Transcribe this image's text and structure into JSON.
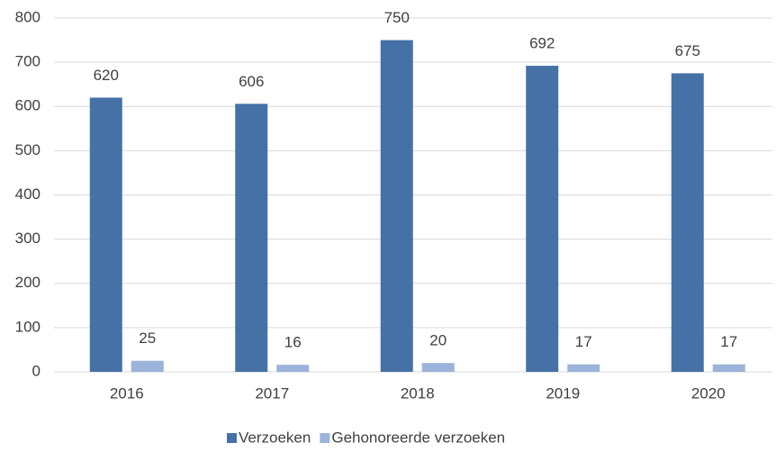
{
  "chart_data": {
    "type": "bar",
    "categories": [
      "2016",
      "2017",
      "2018",
      "2019",
      "2020"
    ],
    "series": [
      {
        "name": "Verzoeken",
        "color": "#4571a6",
        "values": [
          620,
          606,
          750,
          692,
          675
        ]
      },
      {
        "name": "Gehonoreerde verzoeken",
        "color": "#9bb3da",
        "values": [
          25,
          16,
          20,
          17,
          17
        ]
      }
    ],
    "ylim": [
      0,
      800
    ],
    "yticks": [
      0,
      100,
      200,
      300,
      400,
      500,
      600,
      700,
      800
    ],
    "grid": true,
    "legend": "bottom"
  }
}
